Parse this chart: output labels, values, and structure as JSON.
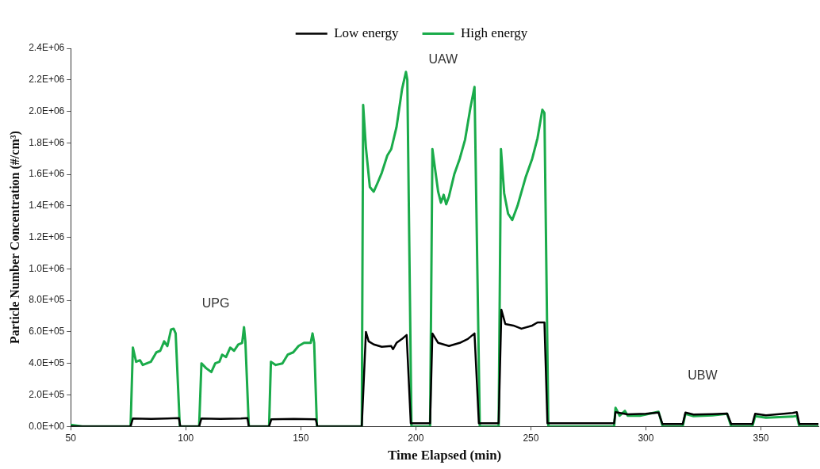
{
  "chart_data": {
    "type": "line",
    "xlabel": "Time Elapsed (min)",
    "ylabel": "Particle Number Concentration (#/cm³)",
    "legend": "top",
    "grid": false,
    "marker": "none",
    "line_style": "solid",
    "xlim": [
      50,
      375
    ],
    "xticks": [
      50,
      100,
      150,
      200,
      250,
      300,
      350
    ],
    "ylim": [
      0,
      2400000
    ],
    "yticks": [
      {
        "value": 0,
        "label": "0.0E+00"
      },
      {
        "value": 200000,
        "label": "2.0E+05"
      },
      {
        "value": 400000,
        "label": "4.0E+05"
      },
      {
        "value": 600000,
        "label": "6.0E+05"
      },
      {
        "value": 800000,
        "label": "8.0E+05"
      },
      {
        "value": 1000000,
        "label": "1.0E+06"
      },
      {
        "value": 1200000,
        "label": "1.2E+06"
      },
      {
        "value": 1400000,
        "label": "1.4E+06"
      },
      {
        "value": 1600000,
        "label": "1.6E+06"
      },
      {
        "value": 1800000,
        "label": "1.8E+06"
      },
      {
        "value": 2000000,
        "label": "2.0E+06"
      },
      {
        "value": 2200000,
        "label": "2.2E+06"
      },
      {
        "value": 2400000,
        "label": "2.4E+06"
      }
    ],
    "annotations": [
      "UPG",
      "UAW",
      "UBW"
    ],
    "series": [
      {
        "name": "Low energy",
        "color": "#000000",
        "x": [
          50,
          76,
          77,
          85,
          92,
          97,
          97.6,
          105.8,
          106.8,
          115,
          124,
          126.8,
          127.4,
          136.2,
          137.2,
          147,
          156.5,
          157.2,
          176.5,
          178.3,
          179.5,
          181.7,
          185.2,
          189.3,
          190.1,
          191.6,
          194,
          196,
          197.8,
          206.2,
          207.2,
          209.7,
          214.4,
          219.1,
          222.6,
          225.5,
          227.4,
          236,
          237.2,
          238.9,
          242.4,
          245.9,
          250.6,
          252.9,
          255.9,
          257.2,
          286.2,
          286.8,
          292,
          300,
          305.5,
          307.2,
          316,
          317.2,
          320.7,
          328.9,
          335.3,
          337.1,
          346.3,
          347.5,
          352.2,
          363.8,
          365.6,
          366.7,
          375
        ],
        "values": [
          0,
          0,
          50000,
          48000,
          50000,
          52000,
          0,
          0,
          50000,
          48000,
          50000,
          52000,
          0,
          0,
          45000,
          47000,
          45000,
          0,
          0,
          600000,
          540000,
          520000,
          505000,
          510000,
          490000,
          530000,
          555000,
          580000,
          20000,
          20000,
          590000,
          530000,
          510000,
          530000,
          555000,
          590000,
          20000,
          20000,
          740000,
          650000,
          640000,
          620000,
          640000,
          660000,
          660000,
          20000,
          20000,
          90000,
          76000,
          80000,
          88000,
          15000,
          15000,
          88000,
          75000,
          78000,
          82000,
          15000,
          15000,
          80000,
          70000,
          85000,
          90000,
          15000,
          15000
        ]
      },
      {
        "name": "High energy",
        "color": "#1aab4a",
        "x": [
          50,
          55,
          76,
          77,
          78.4,
          80.1,
          81.3,
          84.8,
          87.2,
          88.9,
          90.6,
          92,
          93.6,
          94.7,
          95.6,
          97.4,
          105.8,
          106.8,
          108.8,
          111.1,
          112.8,
          114.6,
          115.8,
          117.5,
          119.3,
          121,
          122.8,
          124.5,
          125.3,
          125.9,
          127.4,
          136.2,
          137,
          139.1,
          142,
          144.3,
          146.7,
          149,
          151.4,
          154.3,
          155.1,
          155.8,
          157,
          176.5,
          177.1,
          178.3,
          180,
          181.7,
          183.5,
          185.2,
          187.6,
          189.3,
          191.6,
          194,
          195.7,
          196.3,
          198.1,
          206.2,
          207.2,
          209.7,
          210.9,
          212.1,
          213.2,
          214.4,
          216.7,
          219.1,
          221.4,
          223.7,
          225.5,
          227.8,
          236,
          237,
          238.4,
          240.1,
          241.9,
          244.2,
          247.7,
          250.6,
          252.9,
          255,
          255.9,
          257.6,
          286.2,
          286.8,
          288.6,
          290.9,
          292.1,
          297.4,
          305.5,
          307.3,
          316,
          317.2,
          320.7,
          328.9,
          335.3,
          337.1,
          346.3,
          347.5,
          352.2,
          363.8,
          365.6,
          366.7,
          375
        ],
        "values": [
          10000,
          0,
          0,
          500000,
          410000,
          420000,
          390000,
          410000,
          470000,
          480000,
          540000,
          510000,
          615000,
          620000,
          590000,
          0,
          0,
          400000,
          370000,
          345000,
          400000,
          410000,
          455000,
          440000,
          500000,
          480000,
          520000,
          530000,
          630000,
          540000,
          0,
          0,
          410000,
          390000,
          400000,
          455000,
          470000,
          510000,
          530000,
          530000,
          590000,
          530000,
          0,
          0,
          2040000,
          1770000,
          1520000,
          1490000,
          1550000,
          1610000,
          1720000,
          1760000,
          1900000,
          2140000,
          2250000,
          2200000,
          0,
          0,
          1760000,
          1490000,
          1420000,
          1470000,
          1410000,
          1460000,
          1600000,
          1700000,
          1820000,
          2020000,
          2155000,
          0,
          0,
          1760000,
          1480000,
          1350000,
          1310000,
          1400000,
          1580000,
          1700000,
          1830000,
          2010000,
          1990000,
          0,
          0,
          118000,
          68000,
          98000,
          68000,
          68000,
          93000,
          0,
          0,
          80000,
          65000,
          70000,
          80000,
          0,
          0,
          65000,
          55000,
          62000,
          67000,
          0,
          0
        ]
      }
    ]
  }
}
